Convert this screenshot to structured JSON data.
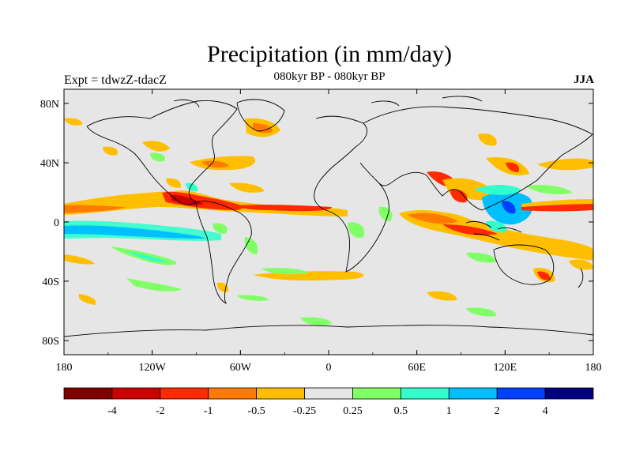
{
  "title": "Precipitation (in mm/day)",
  "subtitle": "080kyr BP - 080kyr BP",
  "left_label": "Expt = tdwzZ-tdacZ",
  "right_label": "JJA",
  "lat_ticks": [
    "80N",
    "40N",
    "0",
    "40S",
    "80S"
  ],
  "lon_ticks": [
    "180",
    "120W",
    "60W",
    "0",
    "60E",
    "120E",
    "180"
  ],
  "colorbar": {
    "colors": [
      "#7f0000",
      "#cc0000",
      "#ff2a00",
      "#ff7a00",
      "#ffbf00",
      "#e6e6e6",
      "#80ff66",
      "#33ffcc",
      "#00bfff",
      "#0040ff",
      "#000080"
    ],
    "labels": [
      "-4",
      "-2",
      "-1",
      "-0.5",
      "-0.25",
      "0.25",
      "0.5",
      "1",
      "2",
      "4"
    ]
  },
  "colors": {
    "background": "#e6e6e6",
    "coast": "#000000"
  }
}
